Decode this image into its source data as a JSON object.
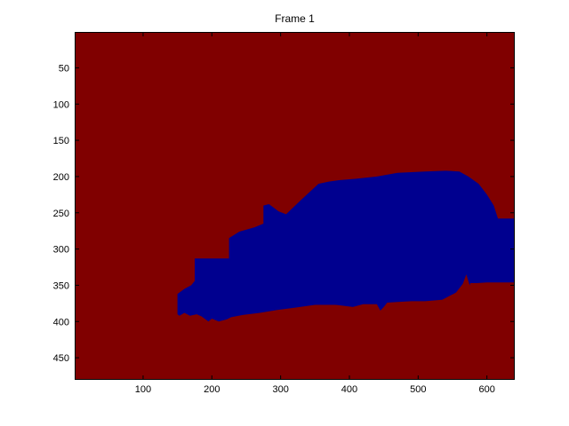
{
  "chart_data": {
    "type": "heatmap",
    "title": "Frame 1",
    "xlabel": "",
    "ylabel": "",
    "image_width": 640,
    "image_height": 480,
    "xlim": [
      0.5,
      640.5
    ],
    "ylim": [
      0.5,
      480.5
    ],
    "y_reversed": true,
    "x_ticks": [
      100,
      200,
      300,
      400,
      500,
      600
    ],
    "y_ticks": [
      50,
      100,
      150,
      200,
      250,
      300,
      350,
      400,
      450
    ],
    "x_tick_labels": [
      "100",
      "200",
      "300",
      "400",
      "500",
      "600"
    ],
    "y_tick_labels": [
      "50",
      "100",
      "150",
      "200",
      "250",
      "300",
      "350",
      "400",
      "450"
    ],
    "colors": {
      "background_class": "#800000",
      "foreground_class": "#00008f"
    },
    "foreground_region_outline": [
      [
        150,
        390
      ],
      [
        150,
        362
      ],
      [
        160,
        355
      ],
      [
        170,
        350
      ],
      [
        175,
        344
      ],
      [
        175,
        313
      ],
      [
        225,
        313
      ],
      [
        225,
        285
      ],
      [
        240,
        276
      ],
      [
        262,
        270
      ],
      [
        275,
        265
      ],
      [
        275,
        240
      ],
      [
        283,
        238
      ],
      [
        290,
        243
      ],
      [
        297,
        248
      ],
      [
        308,
        252
      ],
      [
        330,
        232
      ],
      [
        355,
        210
      ],
      [
        370,
        207
      ],
      [
        385,
        205
      ],
      [
        410,
        203
      ],
      [
        440,
        200
      ],
      [
        470,
        195
      ],
      [
        510,
        193
      ],
      [
        540,
        192
      ],
      [
        560,
        193
      ],
      [
        573,
        200
      ],
      [
        588,
        210
      ],
      [
        600,
        225
      ],
      [
        610,
        240
      ],
      [
        616,
        258
      ],
      [
        640,
        258
      ],
      [
        640,
        346
      ],
      [
        600,
        346
      ],
      [
        585,
        347
      ],
      [
        576,
        347
      ],
      [
        575,
        350
      ],
      [
        570,
        335
      ],
      [
        565,
        348
      ],
      [
        555,
        360
      ],
      [
        535,
        370
      ],
      [
        510,
        372
      ],
      [
        490,
        372
      ],
      [
        470,
        373
      ],
      [
        455,
        374
      ],
      [
        450,
        380
      ],
      [
        445,
        385
      ],
      [
        440,
        376
      ],
      [
        420,
        376
      ],
      [
        405,
        380
      ],
      [
        380,
        377
      ],
      [
        350,
        377
      ],
      [
        320,
        381
      ],
      [
        295,
        384
      ],
      [
        270,
        388
      ],
      [
        245,
        391
      ],
      [
        228,
        394
      ],
      [
        222,
        397
      ],
      [
        210,
        400
      ],
      [
        200,
        396
      ],
      [
        195,
        400
      ],
      [
        185,
        393
      ],
      [
        178,
        390
      ],
      [
        168,
        392
      ],
      [
        160,
        388
      ],
      [
        153,
        392
      ]
    ]
  }
}
